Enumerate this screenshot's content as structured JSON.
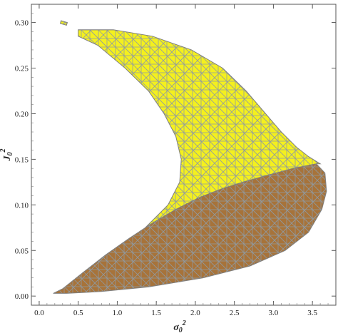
{
  "chart_data": {
    "type": "region",
    "xlabel": {
      "base": "σ",
      "sub": "0",
      "sup": "2"
    },
    "ylabel": {
      "base": "J",
      "sub": "0",
      "sup": "2"
    },
    "xlim": [
      -0.1,
      3.8
    ],
    "ylim": [
      -0.01,
      0.32
    ],
    "xticks": [
      "0.0",
      "0.5",
      "1.0",
      "1.5",
      "2.0",
      "2.5",
      "3.0",
      "3.5"
    ],
    "yticks": [
      "0.00",
      "0.05",
      "0.10",
      "0.15",
      "0.20",
      "0.25",
      "0.30"
    ],
    "grid": false,
    "frame": true,
    "regions": [
      {
        "name": "upper-region",
        "color": "#f4f01e",
        "mesh_color": "#8f9aa3",
        "boundary": [
          [
            0.55,
            0.025
          ],
          [
            0.85,
            0.045
          ],
          [
            1.15,
            0.063
          ],
          [
            1.45,
            0.08
          ],
          [
            1.75,
            0.095
          ],
          [
            2.05,
            0.108
          ],
          [
            2.35,
            0.118
          ],
          [
            2.65,
            0.126
          ],
          [
            2.95,
            0.133
          ],
          [
            3.25,
            0.14
          ],
          [
            3.55,
            0.145
          ],
          [
            3.6,
            0.145
          ],
          [
            3.45,
            0.153
          ],
          [
            3.3,
            0.163
          ],
          [
            3.1,
            0.18
          ],
          [
            2.9,
            0.2
          ],
          [
            2.65,
            0.225
          ],
          [
            2.35,
            0.25
          ],
          [
            1.95,
            0.27
          ],
          [
            1.45,
            0.285
          ],
          [
            0.95,
            0.292
          ],
          [
            0.72,
            0.292
          ],
          [
            0.5,
            0.292
          ],
          [
            0.5,
            0.285
          ],
          [
            0.75,
            0.275
          ],
          [
            1.1,
            0.25
          ],
          [
            1.4,
            0.225
          ],
          [
            1.6,
            0.2
          ],
          [
            1.75,
            0.175
          ],
          [
            1.82,
            0.15
          ],
          [
            1.8,
            0.125
          ],
          [
            1.65,
            0.1
          ],
          [
            1.3,
            0.07
          ],
          [
            0.9,
            0.045
          ],
          [
            0.55,
            0.025
          ]
        ]
      },
      {
        "name": "upper-region-fragment",
        "color": "#f4f01e",
        "mesh_color": "#8f9aa3",
        "boundary": [
          [
            0.28,
            0.302
          ],
          [
            0.36,
            0.3
          ],
          [
            0.35,
            0.297
          ],
          [
            0.27,
            0.299
          ]
        ]
      },
      {
        "name": "lower-region",
        "color": "#a7733a",
        "mesh_color": "#8f9aa3",
        "boundary": [
          [
            0.18,
            0.003
          ],
          [
            0.3,
            0.008
          ],
          [
            0.55,
            0.025
          ],
          [
            0.85,
            0.045
          ],
          [
            1.15,
            0.063
          ],
          [
            1.45,
            0.08
          ],
          [
            1.75,
            0.095
          ],
          [
            2.05,
            0.108
          ],
          [
            2.35,
            0.118
          ],
          [
            2.65,
            0.126
          ],
          [
            2.95,
            0.133
          ],
          [
            3.25,
            0.14
          ],
          [
            3.55,
            0.145
          ],
          [
            3.66,
            0.135
          ],
          [
            3.68,
            0.115
          ],
          [
            3.62,
            0.095
          ],
          [
            3.45,
            0.07
          ],
          [
            3.15,
            0.05
          ],
          [
            2.7,
            0.033
          ],
          [
            2.1,
            0.02
          ],
          [
            1.4,
            0.01
          ],
          [
            0.8,
            0.005
          ],
          [
            0.35,
            0.003
          ],
          [
            0.18,
            0.003
          ]
        ]
      }
    ]
  }
}
